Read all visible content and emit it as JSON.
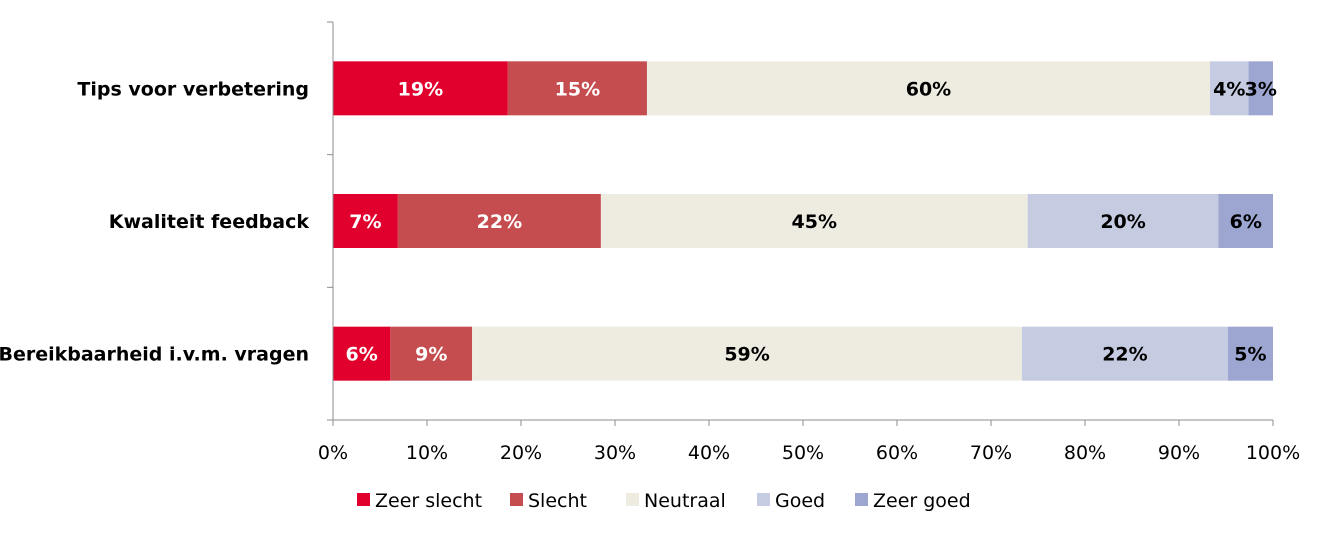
{
  "chart_data": {
    "type": "bar",
    "orientation": "horizontal",
    "stacked": true,
    "categories": [
      "Tips voor verbetering",
      "Kwaliteit feedback",
      "Bereikbaarheid i.v.m. vragen"
    ],
    "series": [
      {
        "name": "Zeer slecht",
        "color": "#e1002d",
        "label_color": "#ffffff",
        "values": [
          18.6,
          6.9,
          6.1
        ],
        "labels": [
          "19%",
          "7%",
          "6%"
        ]
      },
      {
        "name": "Slecht",
        "color": "#c64d4f",
        "label_color": "#ffffff",
        "values": [
          14.8,
          21.6,
          8.7
        ],
        "labels": [
          "15%",
          "22%",
          "9%"
        ]
      },
      {
        "name": "Neutraal",
        "color": "#eeece1",
        "label_color": "#000000",
        "values": [
          59.9,
          45.4,
          58.5
        ],
        "labels": [
          "60%",
          "45%",
          "59%"
        ]
      },
      {
        "name": "Goed",
        "color": "#c5cbe1",
        "label_color": "#000000",
        "values": [
          4.1,
          20.3,
          21.9
        ],
        "labels": [
          "4%",
          "20%",
          "22%"
        ]
      },
      {
        "name": "Zeer goed",
        "color": "#9ca6d1",
        "label_color": "#000000",
        "values": [
          2.6,
          5.8,
          4.8
        ],
        "labels": [
          "3%",
          "6%",
          "5%"
        ]
      }
    ],
    "x_ticks": [
      "0%",
      "10%",
      "20%",
      "30%",
      "40%",
      "50%",
      "60%",
      "70%",
      "80%",
      "90%",
      "100%"
    ],
    "xlim": [
      0,
      100
    ],
    "title": "",
    "xlabel": "",
    "ylabel": "",
    "grid": false,
    "legend_position": "bottom"
  }
}
